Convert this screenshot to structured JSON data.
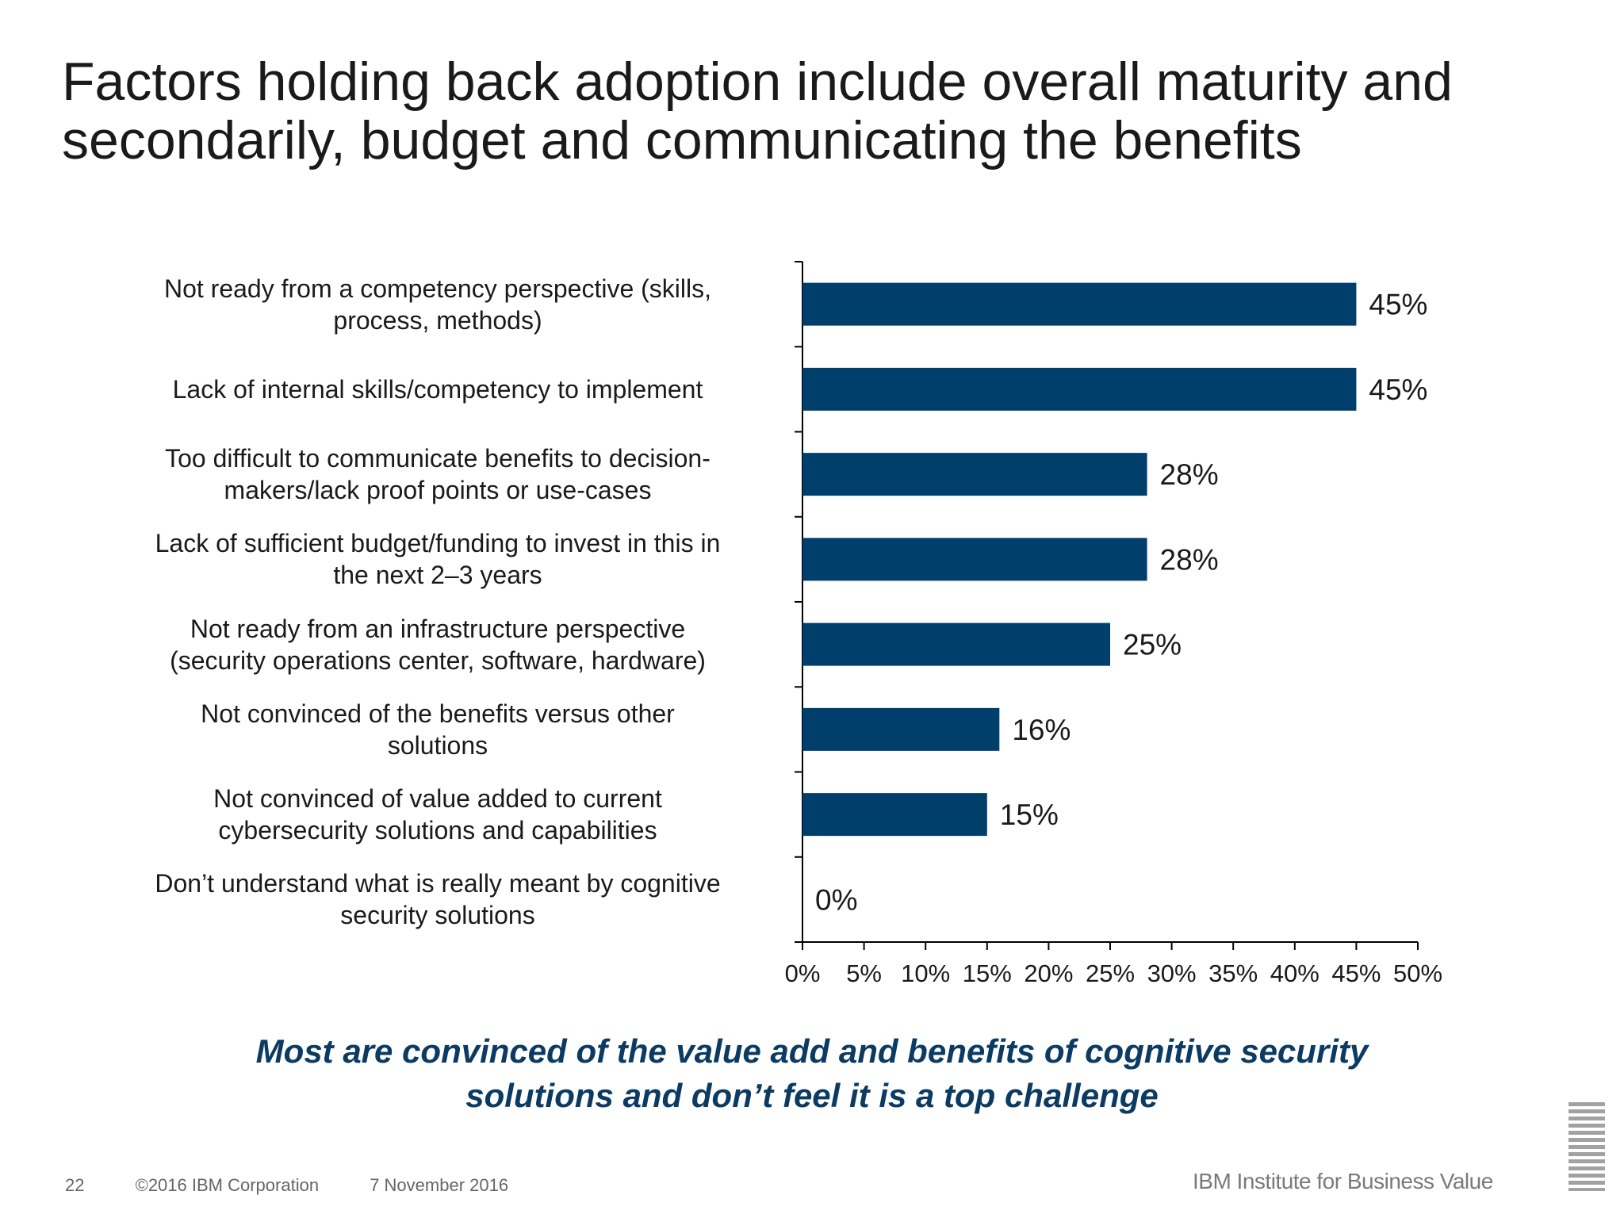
{
  "title_lines": [
    "Factors holding back adoption include overall maturity and",
    "secondarily, budget and communicating the benefits"
  ],
  "chart_data": {
    "type": "bar",
    "orientation": "horizontal",
    "categories": [
      [
        "Not ready from a competency perspective (skills,",
        "process, methods)"
      ],
      [
        "Lack of internal skills/competency to implement"
      ],
      [
        "Too difficult to communicate benefits to decision-",
        "makers/lack proof points or use-cases"
      ],
      [
        "Lack of sufficient budget/funding to invest in this in",
        "the next 2–3 years"
      ],
      [
        "Not ready from an infrastructure perspective",
        "(security operations center, software, hardware)"
      ],
      [
        "Not convinced of the benefits versus other",
        "solutions"
      ],
      [
        "Not convinced of value added to current",
        "cybersecurity solutions and capabilities"
      ],
      [
        "Don’t understand what is really meant by cognitive",
        "security solutions"
      ]
    ],
    "values": [
      45,
      45,
      28,
      28,
      25,
      16,
      15,
      0
    ],
    "data_labels": [
      "45%",
      "45%",
      "28%",
      "28%",
      "25%",
      "16%",
      "15%",
      "0%"
    ],
    "xticks": [
      "0%",
      "5%",
      "10%",
      "15%",
      "20%",
      "25%",
      "30%",
      "35%",
      "40%",
      "45%",
      "50%"
    ],
    "xlim": [
      0,
      50
    ],
    "grid": false,
    "bar_color": "#003f6c"
  },
  "takeaway_lines": [
    "Most are convinced of the value add and benefits of cognitive security",
    "solutions and don’t feel it is a top challenge"
  ],
  "footer": {
    "page_number": "22",
    "copyright": "©2016 IBM Corporation",
    "date": "7 November 2016",
    "brand": "IBM Institute for Business Value"
  },
  "colors": {
    "takeaway": "#0b3a63",
    "bar": "#003f6c"
  }
}
